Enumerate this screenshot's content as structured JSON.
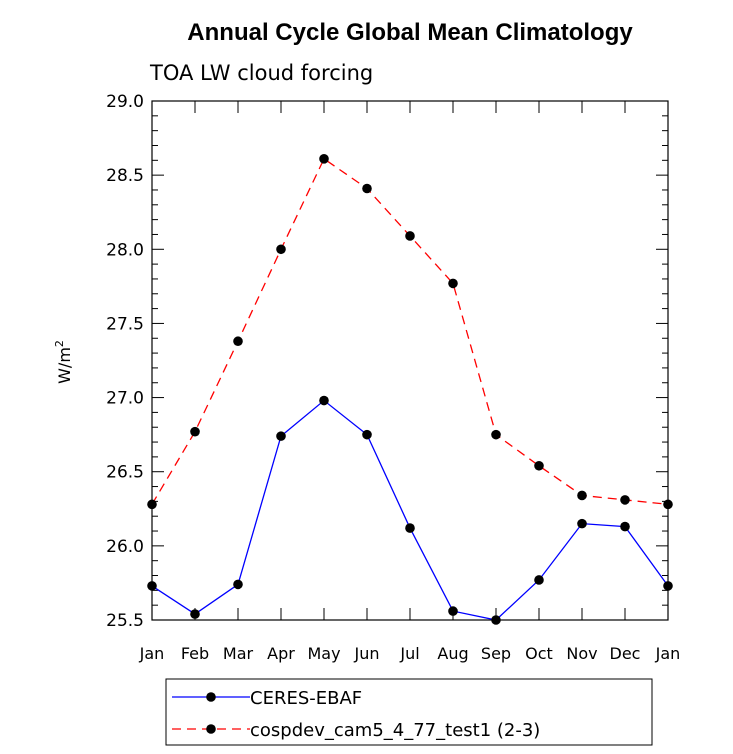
{
  "chart_data": {
    "type": "line",
    "title": "Annual Cycle Global Mean Climatology",
    "subtitle": "TOA LW cloud forcing",
    "ylabel": "W/m",
    "ylabel_sup": "2",
    "xlabel": "",
    "categories": [
      "Jan",
      "Feb",
      "Mar",
      "Apr",
      "May",
      "Jun",
      "Jul",
      "Aug",
      "Sep",
      "Oct",
      "Nov",
      "Dec",
      "Jan"
    ],
    "ylim": [
      25.5,
      29.0
    ],
    "yticks": [
      "25.5",
      "26.0",
      "26.5",
      "27.0",
      "27.5",
      "28.0",
      "28.5",
      "29.0"
    ],
    "series": [
      {
        "name": "CERES-EBAF",
        "color": "#0000ff",
        "dash": "solid",
        "values": [
          25.73,
          25.54,
          25.74,
          26.74,
          26.98,
          26.75,
          26.12,
          25.56,
          25.5,
          25.77,
          26.15,
          26.13,
          25.73
        ]
      },
      {
        "name": "cospdev_cam5_4_77_test1 (2-3)",
        "color": "#ff0000",
        "dash": "dashed",
        "values": [
          26.28,
          26.77,
          27.38,
          28.0,
          28.61,
          28.41,
          28.09,
          27.77,
          26.75,
          26.54,
          26.34,
          26.31,
          26.28
        ]
      }
    ],
    "legend_position": "bottom"
  }
}
